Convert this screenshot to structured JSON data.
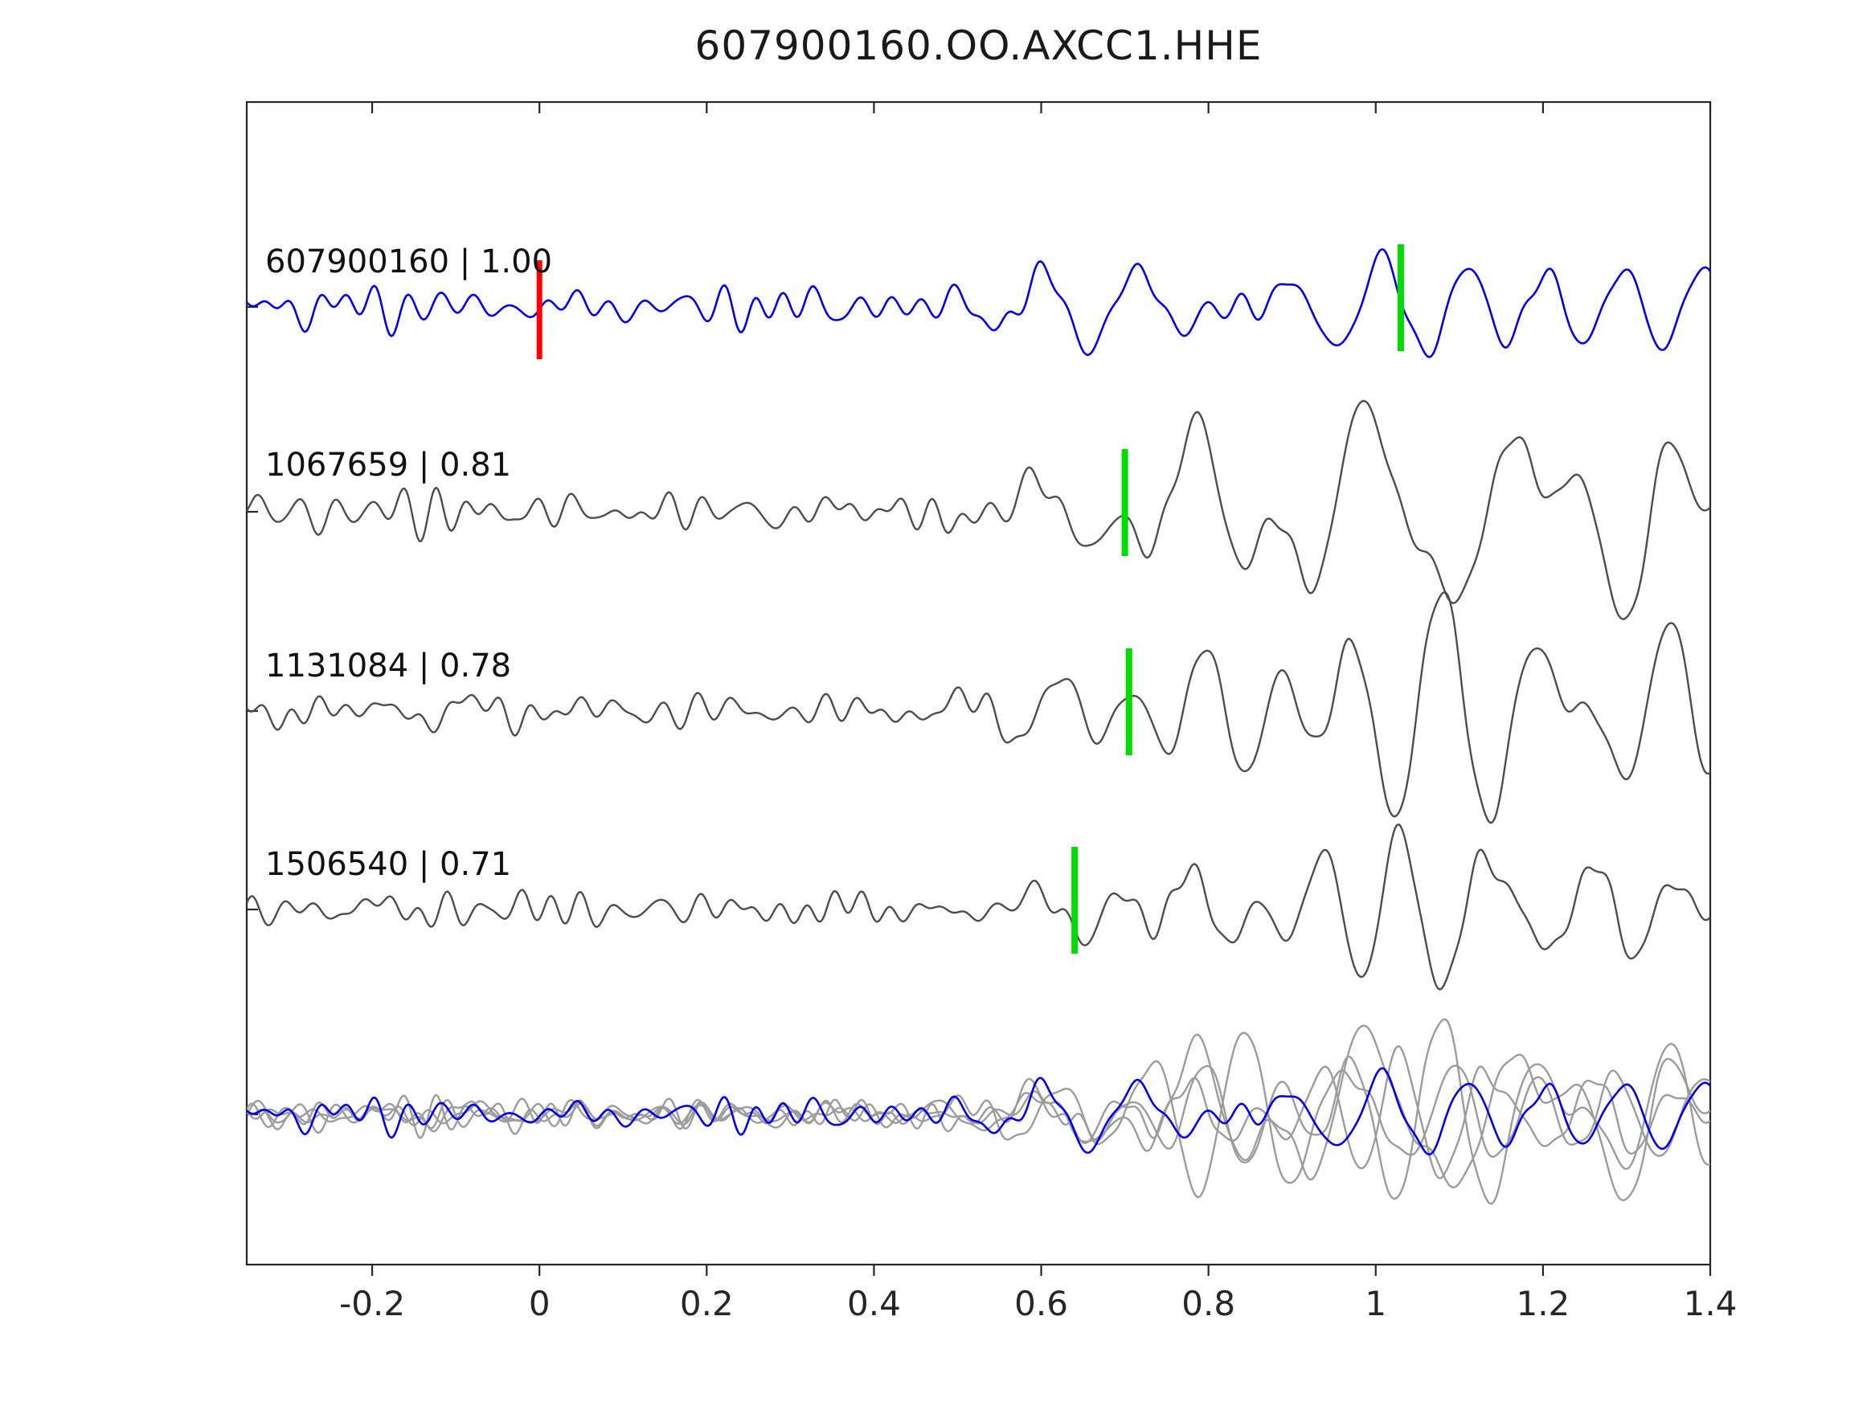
{
  "title": "607900160.OO.AXCC1.HHE",
  "chart_data": {
    "type": "line",
    "title": "607900160.OO.AXCC1.HHE",
    "xlabel": "",
    "ylabel": "",
    "grid": false,
    "legend": "none",
    "xlim": [
      -0.35,
      1.4
    ],
    "xticks": [
      {
        "value": -0.2,
        "label": "-0.2"
      },
      {
        "value": 0.0,
        "label": "0"
      },
      {
        "value": 0.2,
        "label": "0.2"
      },
      {
        "value": 0.4,
        "label": "0.4"
      },
      {
        "value": 0.6,
        "label": "0.6"
      },
      {
        "value": 0.8,
        "label": "0.8"
      },
      {
        "value": 1.0,
        "label": "1"
      },
      {
        "value": 1.2,
        "label": "1.2"
      },
      {
        "value": 1.4,
        "label": "1.4"
      }
    ],
    "colors": {
      "reference_trace": "#0000ee",
      "template_trace": "#4d4d4d",
      "overlay_gray": "#9c9c9c",
      "pick_red": "#ff0000",
      "pick_green": "#00dd00",
      "axis": "#262626"
    },
    "traces": [
      {
        "label": "607900160 | 1.00",
        "event_id": "607900160",
        "correlation": 1.0,
        "color_key": "reference_trace",
        "seed": 11,
        "picks": [
          {
            "type": "reference-pick",
            "color_key": "pick_red",
            "x": 0.0
          },
          {
            "type": "aligned-pick",
            "color_key": "pick_green",
            "x": 1.03
          }
        ]
      },
      {
        "label": "1067659 | 0.81",
        "event_id": "1067659",
        "correlation": 0.81,
        "color_key": "template_trace",
        "seed": 23,
        "picks": [
          {
            "type": "aligned-pick",
            "color_key": "pick_green",
            "x": 0.7
          }
        ]
      },
      {
        "label": "1131084 | 0.78",
        "event_id": "1131084",
        "correlation": 0.78,
        "color_key": "template_trace",
        "seed": 37,
        "picks": [
          {
            "type": "aligned-pick",
            "color_key": "pick_green",
            "x": 0.705
          }
        ]
      },
      {
        "label": "1506540 | 0.71",
        "event_id": "1506540",
        "correlation": 0.71,
        "color_key": "template_trace",
        "seed": 51,
        "picks": [
          {
            "type": "aligned-pick",
            "color_key": "pick_green",
            "x": 0.64
          }
        ]
      }
    ],
    "overlay": {
      "description": "all traces superimposed, templates gray, reference blue on top",
      "gray_seeds": [
        23,
        37,
        51,
        77
      ],
      "blue_seed": 11,
      "amplitude_scale": 0.8
    }
  }
}
